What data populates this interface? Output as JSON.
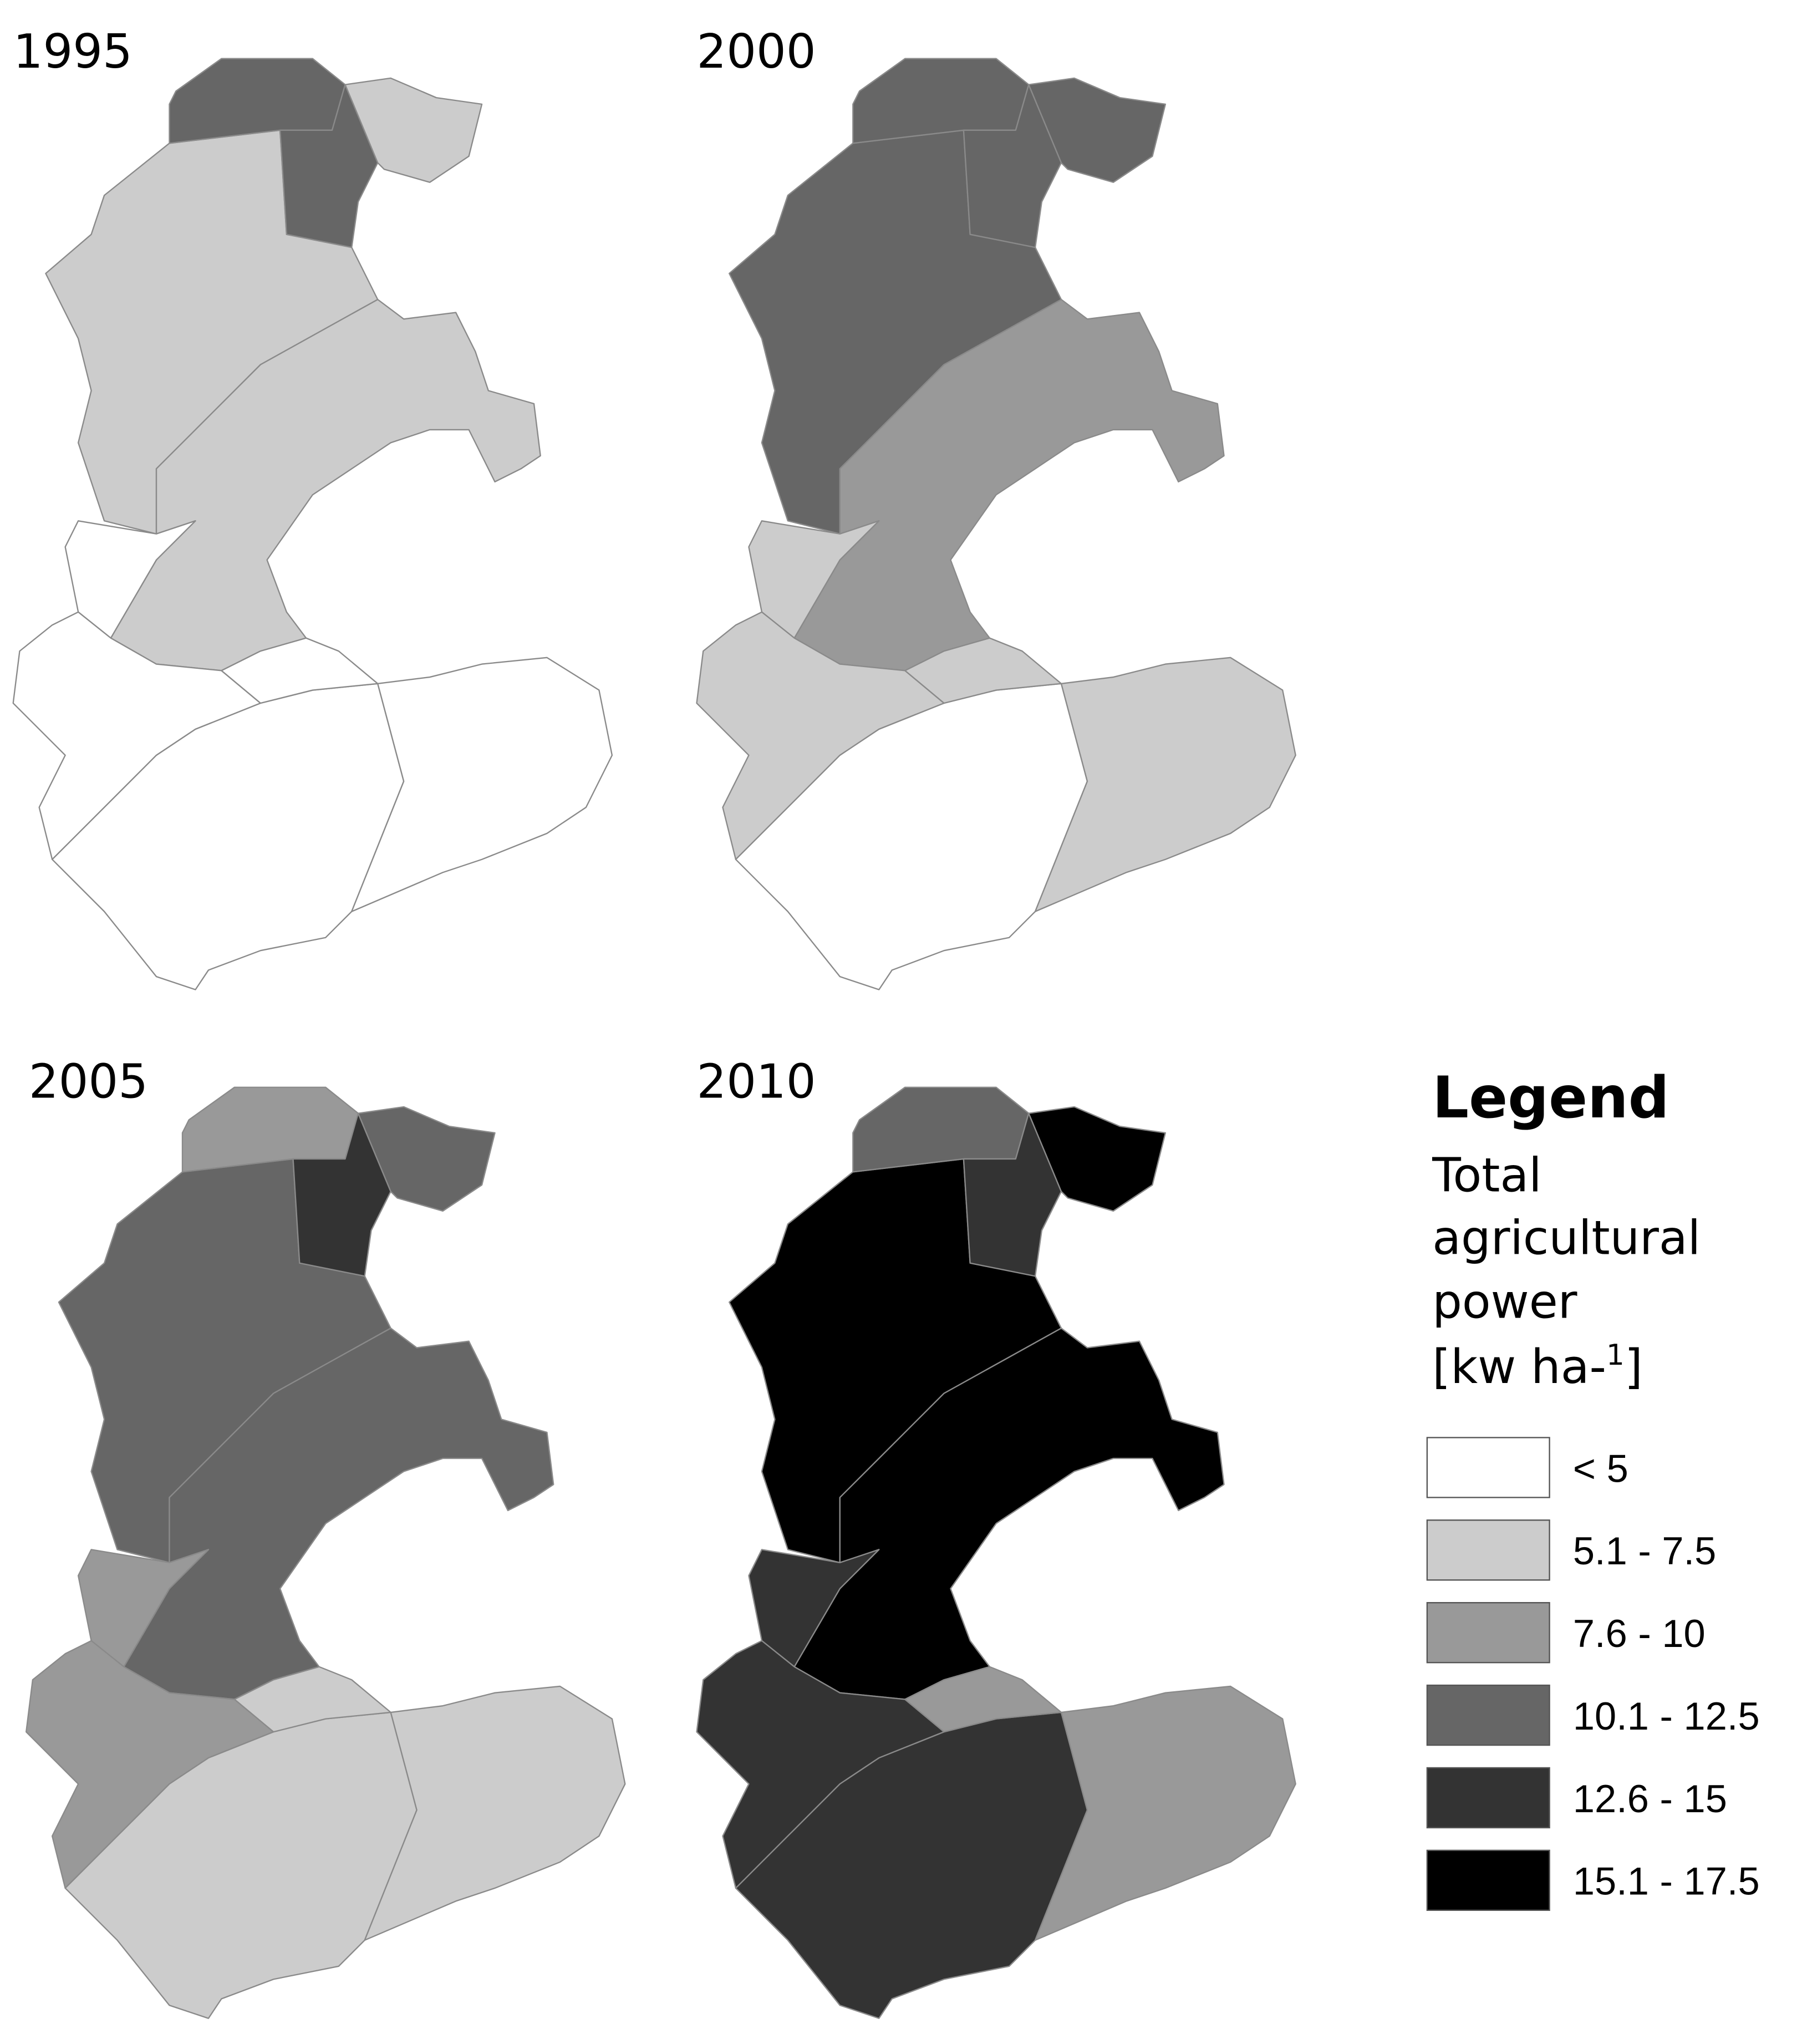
{
  "panels": [
    {
      "year": "1995"
    },
    {
      "year": "2000"
    },
    {
      "year": "2005"
    },
    {
      "year": "2010"
    }
  ],
  "legend": {
    "title": "Legend",
    "subtitle_lines": [
      "Total",
      "agricultural",
      "power"
    ],
    "unit": {
      "text": "[kw ha-",
      "superscript": "1",
      "end": "]"
    },
    "classes": [
      {
        "label": "< 5",
        "color": "#ffffff"
      },
      {
        "label": "5.1 - 7.5",
        "color": "#cccccc"
      },
      {
        "label": "7.6 - 10",
        "color": "#999999"
      },
      {
        "label": "10.1 - 12.5",
        "color": "#666666"
      },
      {
        "label": "12.6 - 15",
        "color": "#333333"
      },
      {
        "label": "15.1 - 17.5",
        "color": "#000000"
      }
    ]
  }
}
